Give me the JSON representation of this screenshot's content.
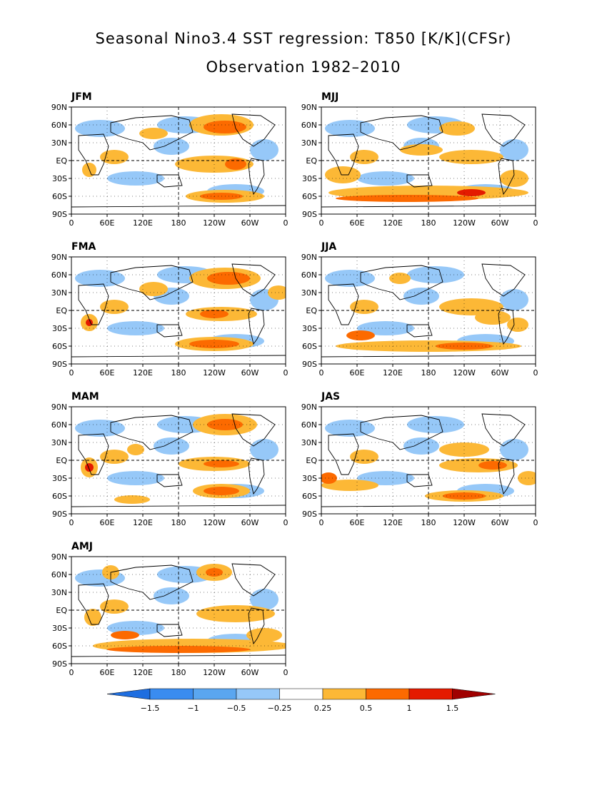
{
  "title": "Seasonal Nino3.4 SST regression: T850 [K/K](CFSr)",
  "subtitle": "Observation 1982–2010",
  "panels": [
    {
      "label": "JFM",
      "pattern": "jfm"
    },
    {
      "label": "MJJ",
      "pattern": "mjj"
    },
    {
      "label": "FMA",
      "pattern": "fma"
    },
    {
      "label": "JJA",
      "pattern": "jja"
    },
    {
      "label": "MAM",
      "pattern": "mam"
    },
    {
      "label": "JAS",
      "pattern": "jas"
    },
    {
      "label": "AMJ",
      "pattern": "amj"
    }
  ],
  "lat_ticks": [
    "90N",
    "60N",
    "30N",
    "EQ",
    "30S",
    "60S",
    "90S"
  ],
  "lon_ticks": [
    "0",
    "60E",
    "120E",
    "180",
    "120W",
    "60W",
    "0"
  ],
  "colorbar": {
    "levels": [
      "−1.5",
      "−1",
      "−0.5",
      "−0.25",
      "0.25",
      "0.5",
      "1",
      "1.5"
    ],
    "colors": [
      "#1e6ee0",
      "#3a8cf0",
      "#5aa6f0",
      "#96c8f8",
      "#ffffff",
      "#fcb836",
      "#fc6a00",
      "#e41a00",
      "#a00000"
    ]
  }
}
